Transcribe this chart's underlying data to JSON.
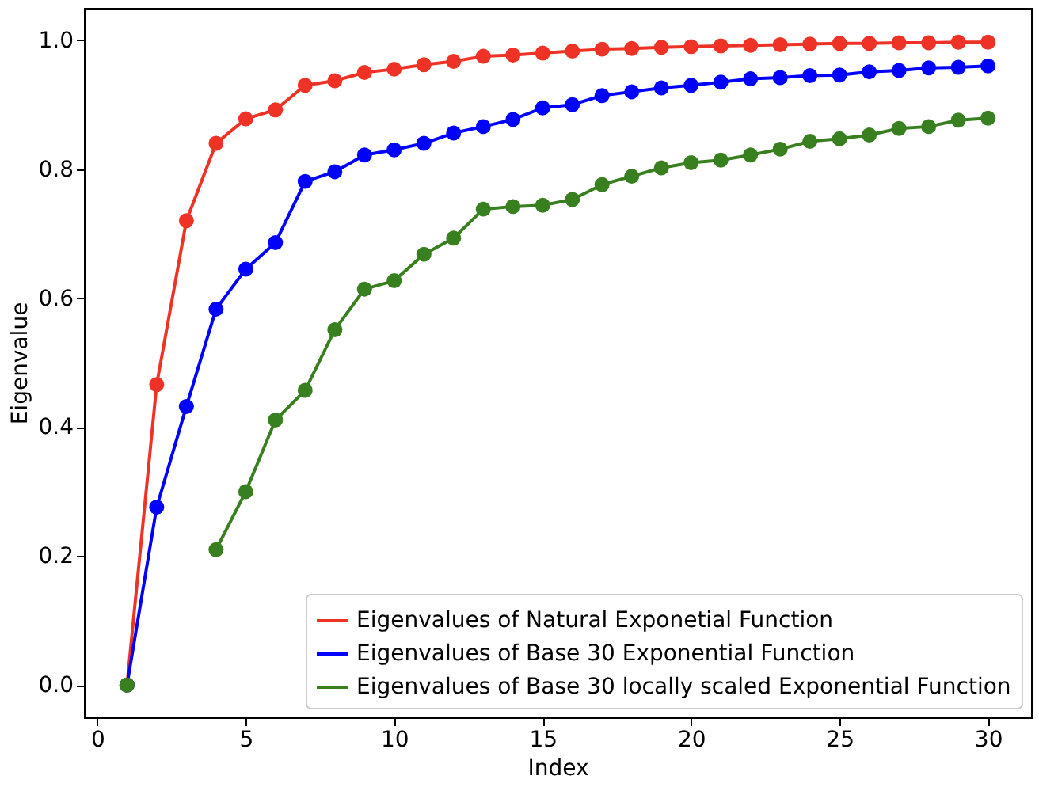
{
  "chart_data": {
    "type": "line",
    "xlabel": "Index",
    "ylabel": "Eigenvalue",
    "x": [
      1,
      2,
      3,
      4,
      5,
      6,
      7,
      8,
      9,
      10,
      11,
      12,
      13,
      14,
      15,
      16,
      17,
      18,
      19,
      20,
      21,
      22,
      23,
      24,
      25,
      26,
      27,
      28,
      29,
      30
    ],
    "series": [
      {
        "name": "Eigenvalues of Natural Exponetial Function",
        "color": "#ee3326",
        "values": [
          0,
          0.466,
          0.72,
          0.84,
          0.878,
          0.892,
          0.93,
          0.937,
          0.95,
          0.955,
          0.962,
          0.967,
          0.975,
          0.977,
          0.98,
          0.983,
          0.986,
          0.987,
          0.989,
          0.99,
          0.991,
          0.992,
          0.993,
          0.994,
          0.995,
          0.995,
          0.996,
          0.996,
          0.997,
          0.997
        ]
      },
      {
        "name": "Eigenvalues of Base 30 Exponential Function",
        "color": "#0000ff",
        "values": [
          0,
          0.276,
          0.432,
          0.583,
          0.645,
          0.686,
          0.781,
          0.796,
          0.822,
          0.83,
          0.84,
          0.856,
          0.866,
          0.877,
          0.895,
          0.9,
          0.914,
          0.92,
          0.926,
          0.93,
          0.935,
          0.94,
          0.942,
          0.945,
          0.946,
          0.951,
          0.953,
          0.957,
          0.958,
          0.96
        ]
      },
      {
        "name": "Eigenvalues of Base 30 locally scaled Exponential Function",
        "color": "#38801f",
        "values": [
          0,
          null,
          null,
          0.21,
          0.3,
          0.411,
          0.457,
          0.551,
          0.614,
          0.627,
          0.668,
          0.693,
          0.738,
          0.742,
          0.744,
          0.753,
          0.776,
          0.789,
          0.802,
          0.81,
          0.814,
          0.822,
          0.831,
          0.843,
          0.847,
          0.853,
          0.863,
          0.866,
          0.876,
          0.879
        ]
      }
    ],
    "xlim": [
      -0.45,
      31.45
    ],
    "xticks": [
      0,
      5,
      10,
      15,
      20,
      25,
      30
    ],
    "ylim": [
      -0.05,
      1.05
    ],
    "yticks": [
      {
        "value": 0,
        "label": "0.0"
      },
      0.2,
      0.4,
      0.6,
      0.8,
      {
        "value": 1,
        "label": "1.0"
      }
    ],
    "grid": false,
    "legend": "bottom right",
    "marker": "circle",
    "line_style": "solid"
  }
}
